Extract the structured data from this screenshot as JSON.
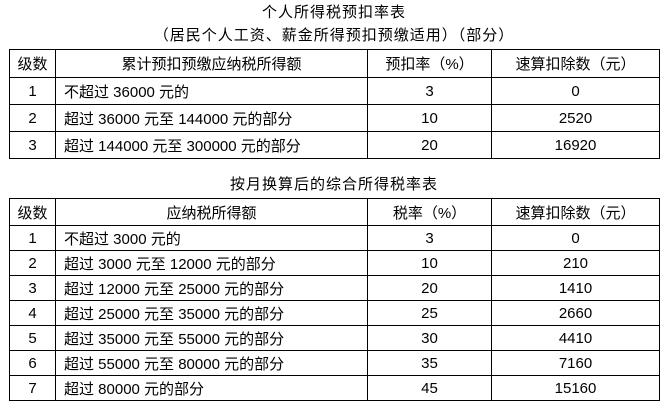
{
  "page": {
    "background": "#ffffff",
    "text_color": "#000000",
    "border_color": "#000000"
  },
  "table1": {
    "title": "个人所得税预扣率表",
    "subtitle": "（居民个人工资、薪金所得预扣预缴适用）（部分）",
    "headers": [
      "级数",
      "累计预扣预缴应纳税所得额",
      "预扣率（%）",
      "速算扣除数（元）"
    ],
    "rows": [
      [
        "1",
        "不超过 36000 元的",
        "3",
        "0"
      ],
      [
        "2",
        "超过 36000 元至 144000 元的部分",
        "10",
        "2520"
      ],
      [
        "3",
        "超过 144000 元至 300000 元的部分",
        "20",
        "16920"
      ]
    ]
  },
  "table2": {
    "title": "按月换算后的综合所得税率表",
    "headers": [
      "级数",
      "应纳税所得额",
      "税率（%）",
      "速算扣除数（元）"
    ],
    "rows": [
      [
        "1",
        "不超过 3000 元的",
        "3",
        "0"
      ],
      [
        "2",
        "超过 3000 元至 12000 元的部分",
        "10",
        "210"
      ],
      [
        "3",
        "超过 12000 元至 25000 元的部分",
        "20",
        "1410"
      ],
      [
        "4",
        "超过 25000 元至 35000 元的部分",
        "25",
        "2660"
      ],
      [
        "5",
        "超过 35000 元至 55000 元的部分",
        "30",
        "4410"
      ],
      [
        "6",
        "超过 55000 元至 80000 元的部分",
        "35",
        "7160"
      ],
      [
        "7",
        "超过 80000 元的部分",
        "45",
        "15160"
      ]
    ]
  }
}
